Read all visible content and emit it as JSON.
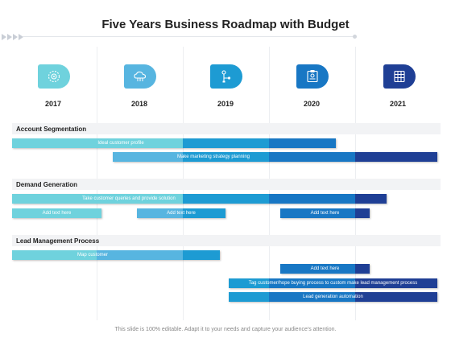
{
  "title": "Five Years Business Roadmap with Budget",
  "colors": {
    "light": "#6fd2dd",
    "mid": "#57b5e0",
    "blue": "#1d9bd3",
    "deep": "#1877c4",
    "navy": "#1f3f95",
    "band": "#f2f3f5"
  },
  "years": [
    {
      "label": "2017",
      "icon": "process-gear-icon",
      "color": "#6fd2dd"
    },
    {
      "label": "2018",
      "icon": "cloud-network-icon",
      "color": "#57b5e0"
    },
    {
      "label": "2019",
      "icon": "user-flow-icon",
      "color": "#1d9bd3"
    },
    {
      "label": "2020",
      "icon": "report-board-icon",
      "color": "#1877c4"
    },
    {
      "label": "2021",
      "icon": "data-grid-icon",
      "color": "#1f3f95"
    }
  ],
  "sections": [
    {
      "label": "Account  Segmentation",
      "bars": [
        {
          "label": "Ideal customer profile",
          "segments": [
            "light",
            "blue",
            "deep"
          ]
        },
        {
          "label": "Make marketing strategy planning",
          "segments": [
            "mid",
            "blue",
            "deep",
            "navy"
          ]
        }
      ]
    },
    {
      "label": "Demand Generation",
      "bars": [
        {
          "label": "Take customer queries and provide solution",
          "segments": [
            "light",
            "blue",
            "deep",
            "navy"
          ]
        },
        {
          "label": "Add text here",
          "segments": [
            "light"
          ]
        },
        {
          "label": "Add text here",
          "segments": [
            "mid",
            "blue"
          ]
        },
        {
          "label": "Add text here",
          "segments": [
            "deep",
            "navy"
          ]
        }
      ]
    },
    {
      "label": "Lead Management Process",
      "bars": [
        {
          "label": "Map customer",
          "segments": [
            "light",
            "mid",
            "blue"
          ]
        },
        {
          "label": "Add text here",
          "segments": [
            "deep",
            "navy"
          ]
        },
        {
          "label": "Tag customer/hope buying process to custom make lead management process",
          "segments": [
            "blue",
            "deep",
            "navy"
          ]
        },
        {
          "label": "Lead generation automation",
          "segments": [
            "blue",
            "deep",
            "navy"
          ]
        }
      ]
    }
  ],
  "footer": "This slide is 100% editable. Adapt it to your needs and capture your audience's attention."
}
